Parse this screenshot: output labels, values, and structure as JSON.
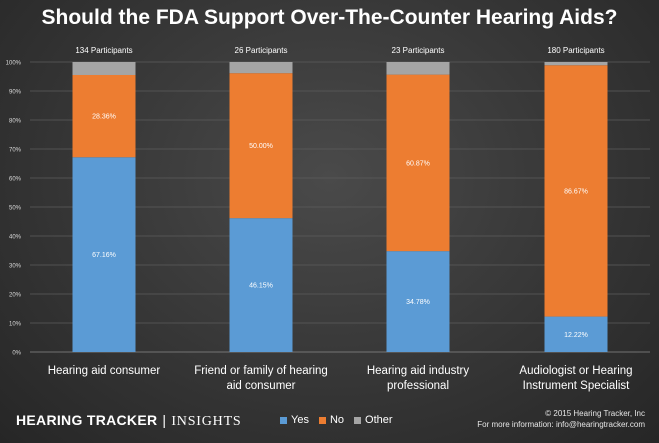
{
  "chart_data": {
    "type": "bar",
    "stacked": true,
    "title": "Should the FDA Support Over-The-Counter Hearing Aids?",
    "categories": [
      [
        "Hearing aid consumer"
      ],
      [
        "Friend or family of hearing",
        "aid consumer"
      ],
      [
        "Hearing aid industry",
        "professional"
      ],
      [
        "Audiologist or Hearing",
        "Instrument Specialist"
      ]
    ],
    "participants": [
      "134 Participants",
      "26 Participants",
      "23 Participants",
      "180 Participants"
    ],
    "series": [
      {
        "name": "Yes",
        "color": "#5b9bd5",
        "values": [
          67.16,
          46.15,
          34.78,
          12.22
        ],
        "labels": [
          "67.16%",
          "46.15%",
          "34.78%",
          "12.22%"
        ]
      },
      {
        "name": "No",
        "color": "#ed7d31",
        "values": [
          28.36,
          50.0,
          60.87,
          86.67
        ],
        "labels": [
          "28.36%",
          "50.00%",
          "60.87%",
          "86.67%"
        ]
      },
      {
        "name": "Other",
        "color": "#a5a5a5",
        "values": [
          4.48,
          3.85,
          4.35,
          1.11
        ],
        "labels": [
          "",
          "",
          "",
          ""
        ]
      }
    ],
    "yticks": [
      "0%",
      "10%",
      "20%",
      "30%",
      "40%",
      "50%",
      "60%",
      "70%",
      "80%",
      "90%",
      "100%"
    ],
    "ylim": [
      0,
      100
    ],
    "grid": true,
    "legend_position": "bottom"
  },
  "brand": {
    "name": "HEARING TRACKER",
    "separator": "|",
    "section": "INSIGHTS"
  },
  "footer": {
    "copyright": "© 2015 Hearing Tracker, Inc",
    "info": "For more information: info@hearingtracker.com"
  }
}
